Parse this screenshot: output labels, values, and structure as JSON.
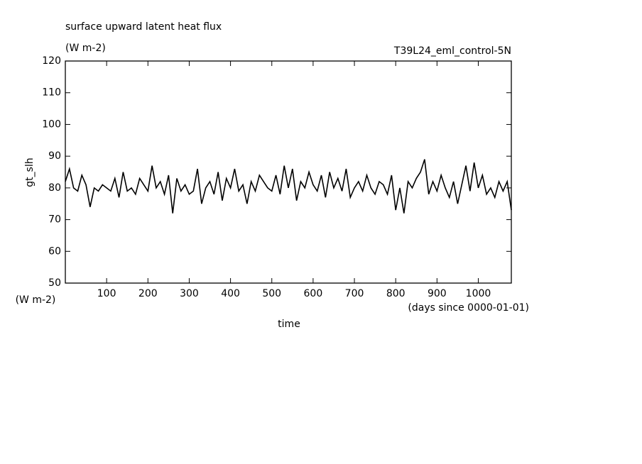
{
  "chart_data": {
    "type": "line",
    "title": "surface upward latent heat flux",
    "subtitle": "(W m-2)",
    "annotation": "T39L24_eml_control-5N",
    "y_label": "gt_slh",
    "y_unit": "(W m-2)",
    "x_label": "time",
    "x_unit": "(days since 0000-01-01)",
    "color": "#000000",
    "x": [
      0,
      10,
      20,
      30,
      40,
      50,
      60,
      70,
      80,
      90,
      100,
      110,
      120,
      130,
      140,
      150,
      160,
      170,
      180,
      190,
      200,
      210,
      220,
      230,
      240,
      250,
      260,
      270,
      280,
      290,
      300,
      310,
      320,
      330,
      340,
      350,
      360,
      370,
      380,
      390,
      400,
      410,
      420,
      430,
      440,
      450,
      460,
      470,
      480,
      490,
      500,
      510,
      520,
      530,
      540,
      550,
      560,
      570,
      580,
      590,
      600,
      610,
      620,
      630,
      640,
      650,
      660,
      670,
      680,
      690,
      700,
      710,
      720,
      730,
      740,
      750,
      760,
      770,
      780,
      790,
      800,
      810,
      820,
      830,
      840,
      850,
      860,
      870,
      880,
      890,
      900,
      910,
      920,
      930,
      940,
      950,
      960,
      970,
      980,
      990,
      1000,
      1010,
      1020,
      1030,
      1040,
      1050,
      1060,
      1070,
      1080
    ],
    "values": [
      82,
      86,
      80,
      79,
      84,
      81,
      74,
      80,
      79,
      81,
      80,
      79,
      83,
      77,
      85,
      79,
      80,
      78,
      83,
      81,
      79,
      87,
      80,
      82,
      78,
      84,
      72,
      83,
      79,
      81,
      78,
      79,
      86,
      75,
      80,
      82,
      78,
      85,
      76,
      83,
      80,
      86,
      79,
      81,
      75,
      82,
      79,
      84,
      82,
      80,
      79,
      84,
      78,
      87,
      80,
      86,
      76,
      82,
      80,
      85,
      81,
      79,
      84,
      77,
      85,
      80,
      83,
      79,
      86,
      77,
      80,
      82,
      79,
      84,
      80,
      78,
      82,
      81,
      78,
      84,
      73,
      80,
      72,
      82,
      80,
      83,
      85,
      89,
      78,
      82,
      79,
      84,
      80,
      77,
      82,
      75,
      81,
      87,
      79,
      88,
      80,
      84,
      78,
      80,
      77,
      82,
      79,
      82,
      73
    ],
    "xlim": [
      0,
      1080
    ],
    "ylim": [
      50,
      120
    ],
    "xticks": [
      100,
      200,
      300,
      400,
      500,
      600,
      700,
      800,
      900,
      1000
    ],
    "yticks": [
      50,
      60,
      70,
      80,
      90,
      100,
      110,
      120
    ]
  }
}
